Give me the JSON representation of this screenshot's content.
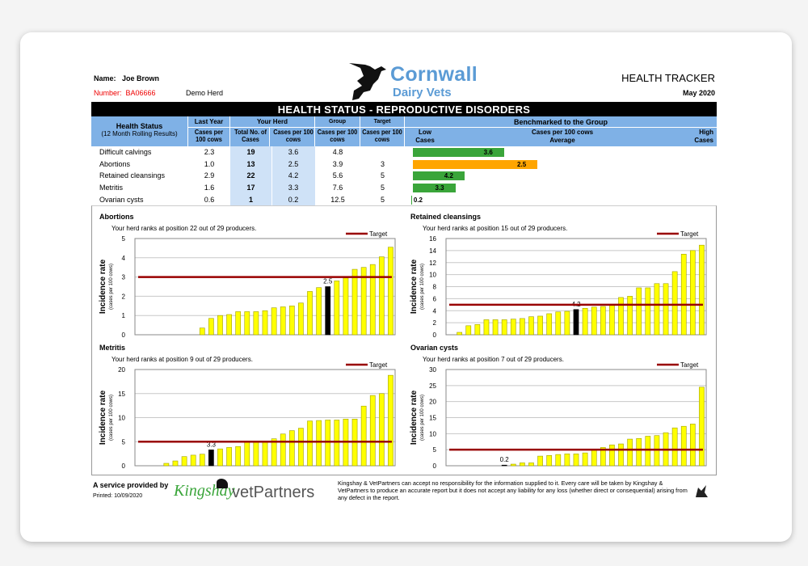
{
  "header": {
    "name_label": "Name:",
    "name": "Joe Brown",
    "number_label": "Number:",
    "number": "BA06666",
    "herd": "Demo Herd",
    "logo_line1": "Cornwall",
    "logo_line2": "Dairy Vets",
    "report_title": "HEALTH TRACKER",
    "period": "May 2020"
  },
  "table": {
    "title": "HEALTH STATUS - REPRODUCTIVE DISORDERS",
    "col_health": "Health Status",
    "col_health_sub": "(12 Month Rolling Results)",
    "col_last_year": "Last Year",
    "col_your_herd": "Your Herd",
    "col_group": "Group",
    "col_target": "Target",
    "unit": "Cases per 100 cows",
    "total_cases": "Total No. of Cases",
    "bench_title": "Benchmarked to the Group",
    "bench_low": "Low Cases",
    "bench_mid1": "Cases per 100 cows",
    "bench_mid2": "Average",
    "bench_high": "High Cases",
    "colors": {
      "good": "#3aa53a",
      "warn": "#ffa500"
    },
    "rows": [
      {
        "name": "Difficult calvings",
        "last_year": "2.3",
        "total": "19",
        "rate": "3.6",
        "group": "4.8",
        "target": "",
        "bench_fill": 0.3,
        "bench_color": "good"
      },
      {
        "name": "Abortions",
        "last_year": "1.0",
        "total": "13",
        "rate": "2.5",
        "group": "3.9",
        "target": "3",
        "bench_fill": 0.41,
        "bench_color": "warn"
      },
      {
        "name": "Retained cleansings",
        "last_year": "2.9",
        "total": "22",
        "rate": "4.2",
        "group": "5.6",
        "target": "5",
        "bench_fill": 0.17,
        "bench_color": "good"
      },
      {
        "name": "Metritis",
        "last_year": "1.6",
        "total": "17",
        "rate": "3.3",
        "group": "7.6",
        "target": "5",
        "bench_fill": 0.14,
        "bench_color": "good"
      },
      {
        "name": "Ovarian cysts",
        "last_year": "0.6",
        "total": "1",
        "rate": "0.2",
        "group": "12.5",
        "target": "5",
        "bench_fill": 0.005,
        "bench_color": "good"
      }
    ]
  },
  "chart_data": [
    {
      "type": "bar",
      "title": "Abortions",
      "subtitle": "Your herd ranks at position 22 out of 29 producers.",
      "ylabel": "Incidence rate",
      "ylabel_sub": "(cases per 100 cows)",
      "ylim": [
        0,
        5
      ],
      "yticks": [
        0,
        1,
        2,
        3,
        4,
        5
      ],
      "target": 3,
      "legend": "Target",
      "highlight_index": 21,
      "highlight_label": "2.5",
      "values": [
        0,
        0,
        0,
        0,
        0,
        0,
        0,
        0.35,
        0.85,
        1.0,
        1.05,
        1.2,
        1.2,
        1.2,
        1.25,
        1.4,
        1.45,
        1.5,
        1.65,
        2.25,
        2.45,
        2.5,
        2.8,
        2.95,
        3.4,
        3.5,
        3.65,
        4.05,
        4.55
      ]
    },
    {
      "type": "bar",
      "title": "Retained cleansings",
      "subtitle": "Your herd ranks at position 15 out of 29 producers.",
      "ylabel": "Incidence rate",
      "ylabel_sub": "(cases per 100 cows)",
      "ylim": [
        0,
        16
      ],
      "yticks": [
        0,
        2,
        4,
        6,
        8,
        10,
        12,
        14,
        16
      ],
      "target": 5,
      "legend": "Target",
      "highlight_index": 14,
      "highlight_label": "4.2",
      "values": [
        0,
        0.4,
        1.5,
        1.7,
        2.5,
        2.5,
        2.5,
        2.6,
        2.7,
        3.0,
        3.1,
        3.5,
        3.8,
        3.9,
        4.2,
        4.4,
        4.6,
        4.7,
        4.9,
        6.2,
        6.4,
        7.8,
        7.8,
        8.5,
        8.5,
        10.5,
        13.4,
        14.0,
        14.9
      ]
    },
    {
      "type": "bar",
      "title": "Metritis",
      "subtitle": "Your herd ranks at position 9 out of 29 producers.",
      "ylabel": "Incidence rate",
      "ylabel_sub": "(cases per 100 cows)",
      "ylim": [
        0,
        20
      ],
      "yticks": [
        0,
        5,
        10,
        15,
        20
      ],
      "target": 5,
      "legend": "Target",
      "highlight_index": 8,
      "highlight_label": "3.3",
      "values": [
        0,
        0,
        0,
        0.5,
        1.0,
        1.9,
        2.2,
        2.4,
        3.3,
        3.5,
        3.8,
        4.0,
        5.0,
        5.0,
        5.0,
        5.6,
        6.6,
        7.3,
        7.8,
        9.3,
        9.4,
        9.5,
        9.5,
        9.7,
        9.7,
        12.4,
        14.6,
        15.0,
        18.8
      ]
    },
    {
      "type": "bar",
      "title": "Ovarian cysts",
      "subtitle": "Your herd ranks at position 7 out of 29 producers.",
      "ylabel": "Incidence rate",
      "ylabel_sub": "(cases per 100 cows)",
      "ylim": [
        0,
        30
      ],
      "yticks": [
        0,
        5,
        10,
        15,
        20,
        25,
        30
      ],
      "target": 5,
      "legend": "Target",
      "highlight_index": 6,
      "highlight_label": "0.2",
      "values": [
        0,
        0,
        0,
        0,
        0,
        0,
        0.2,
        0.5,
        0.9,
        0.9,
        3.0,
        3.2,
        3.5,
        3.7,
        3.7,
        4.0,
        5.0,
        5.7,
        6.5,
        6.8,
        8.3,
        8.5,
        9.2,
        9.4,
        10.3,
        11.8,
        12.3,
        13.0,
        24.5
      ]
    }
  ],
  "footer": {
    "service": "A service provided by",
    "printed": "Printed: 10/09/2020",
    "kingshay": "Kingshay",
    "vetpartners": "vetPartners",
    "disclaimer": "Kingshay & VetPartners can accept no responsibility for the information supplied to it.  Every care will be taken by Kingshay & VetPartners to produce an accurate report but it does not accept any liability for any loss (whether direct or consequential) arising from any defect in the report."
  }
}
